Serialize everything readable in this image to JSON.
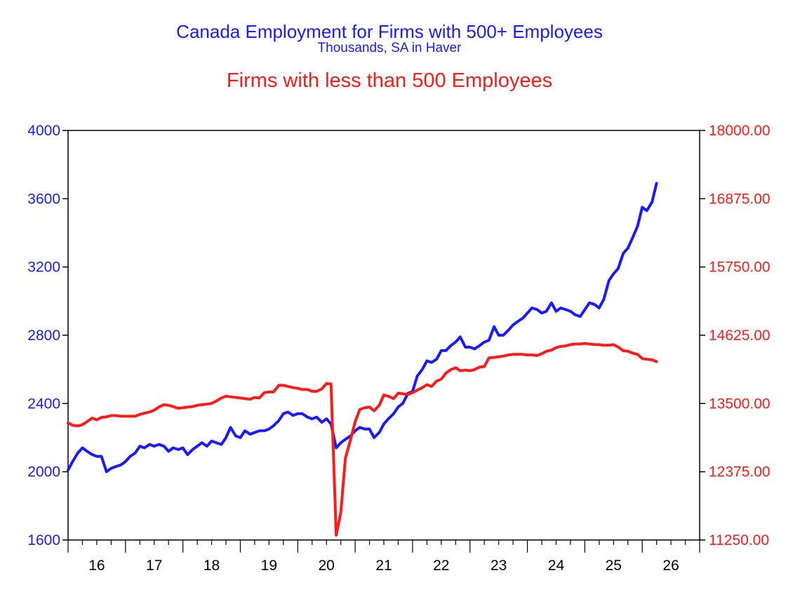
{
  "chart_data": {
    "type": "line",
    "title": "Canada Employment for Firms with 500+ Employees",
    "subtitle": "Thousands, SA in Haver",
    "title2": "Firms with less than 500 Employees",
    "colors": {
      "left": "#1a1aff",
      "right": "#ff1a1a",
      "axis": "#000000"
    },
    "x_domain": [
      2015.5,
      2026.5
    ],
    "x_tick_labels": [
      "16",
      "17",
      "18",
      "19",
      "20",
      "21",
      "22",
      "23",
      "24",
      "25",
      "26"
    ],
    "left_axis": {
      "ylim": [
        1600,
        4000
      ],
      "ticks": [
        "1600",
        "2000",
        "2400",
        "2800",
        "3200",
        "3600",
        "4000"
      ]
    },
    "right_axis": {
      "ylim": [
        11250,
        18000
      ],
      "ticks": [
        "11250.00",
        "12375.00",
        "13500.00",
        "14625.00",
        "15750.00",
        "16875.00",
        "18000.00"
      ]
    },
    "grid": false,
    "series": [
      {
        "axis": "left",
        "color": "#1a1aff",
        "points": [
          [
            2015.5,
            2010
          ],
          [
            2015.58,
            2060
          ],
          [
            2015.67,
            2110
          ],
          [
            2015.75,
            2140
          ],
          [
            2015.83,
            2120
          ],
          [
            2015.92,
            2100
          ],
          [
            2016.0,
            2090
          ],
          [
            2016.08,
            2090
          ],
          [
            2016.17,
            2000
          ],
          [
            2016.25,
            2020
          ],
          [
            2016.33,
            2030
          ],
          [
            2016.42,
            2040
          ],
          [
            2016.5,
            2060
          ],
          [
            2016.58,
            2090
          ],
          [
            2016.67,
            2110
          ],
          [
            2016.75,
            2150
          ],
          [
            2016.83,
            2140
          ],
          [
            2016.92,
            2160
          ],
          [
            2017.0,
            2150
          ],
          [
            2017.08,
            2160
          ],
          [
            2017.17,
            2150
          ],
          [
            2017.25,
            2120
          ],
          [
            2017.33,
            2140
          ],
          [
            2017.42,
            2130
          ],
          [
            2017.5,
            2140
          ],
          [
            2017.58,
            2100
          ],
          [
            2017.67,
            2130
          ],
          [
            2017.75,
            2150
          ],
          [
            2017.83,
            2170
          ],
          [
            2017.92,
            2150
          ],
          [
            2018.0,
            2180
          ],
          [
            2018.08,
            2170
          ],
          [
            2018.17,
            2160
          ],
          [
            2018.25,
            2200
          ],
          [
            2018.33,
            2260
          ],
          [
            2018.42,
            2210
          ],
          [
            2018.5,
            2200
          ],
          [
            2018.58,
            2240
          ],
          [
            2018.67,
            2220
          ],
          [
            2018.75,
            2230
          ],
          [
            2018.83,
            2240
          ],
          [
            2018.92,
            2240
          ],
          [
            2019.0,
            2250
          ],
          [
            2019.08,
            2270
          ],
          [
            2019.17,
            2300
          ],
          [
            2019.25,
            2340
          ],
          [
            2019.33,
            2350
          ],
          [
            2019.42,
            2330
          ],
          [
            2019.5,
            2340
          ],
          [
            2019.58,
            2340
          ],
          [
            2019.67,
            2320
          ],
          [
            2019.75,
            2310
          ],
          [
            2019.83,
            2320
          ],
          [
            2019.92,
            2290
          ],
          [
            2020.0,
            2310
          ],
          [
            2020.08,
            2280
          ],
          [
            2020.17,
            2140
          ],
          [
            2020.25,
            2170
          ],
          [
            2020.33,
            2190
          ],
          [
            2020.42,
            2210
          ],
          [
            2020.5,
            2240
          ],
          [
            2020.58,
            2260
          ],
          [
            2020.67,
            2250
          ],
          [
            2020.75,
            2250
          ],
          [
            2020.83,
            2200
          ],
          [
            2020.92,
            2230
          ],
          [
            2021.0,
            2280
          ],
          [
            2021.08,
            2310
          ],
          [
            2021.17,
            2340
          ],
          [
            2021.25,
            2380
          ],
          [
            2021.33,
            2400
          ],
          [
            2021.42,
            2460
          ],
          [
            2021.5,
            2470
          ],
          [
            2021.58,
            2560
          ],
          [
            2021.67,
            2600
          ],
          [
            2021.75,
            2650
          ],
          [
            2021.83,
            2640
          ],
          [
            2021.92,
            2660
          ],
          [
            2022.0,
            2710
          ],
          [
            2022.08,
            2710
          ],
          [
            2022.17,
            2740
          ],
          [
            2022.25,
            2760
          ],
          [
            2022.33,
            2790
          ],
          [
            2022.42,
            2730
          ],
          [
            2022.5,
            2730
          ],
          [
            2022.58,
            2720
          ],
          [
            2022.67,
            2740
          ],
          [
            2022.75,
            2760
          ],
          [
            2022.83,
            2770
          ],
          [
            2022.92,
            2850
          ],
          [
            2023.0,
            2800
          ],
          [
            2023.08,
            2800
          ],
          [
            2023.17,
            2830
          ],
          [
            2023.25,
            2860
          ],
          [
            2023.33,
            2880
          ],
          [
            2023.42,
            2900
          ],
          [
            2023.5,
            2930
          ],
          [
            2023.58,
            2960
          ],
          [
            2023.67,
            2950
          ],
          [
            2023.75,
            2930
          ],
          [
            2023.83,
            2940
          ],
          [
            2023.92,
            2990
          ],
          [
            2024.0,
            2940
          ],
          [
            2024.08,
            2960
          ],
          [
            2024.17,
            2950
          ],
          [
            2024.25,
            2940
          ],
          [
            2024.33,
            2920
          ],
          [
            2024.42,
            2910
          ],
          [
            2024.5,
            2950
          ],
          [
            2024.58,
            2990
          ],
          [
            2024.67,
            2980
          ],
          [
            2024.75,
            2960
          ],
          [
            2024.83,
            3010
          ],
          [
            2024.92,
            3120
          ],
          [
            2025.0,
            3160
          ],
          [
            2025.08,
            3190
          ],
          [
            2025.17,
            3280
          ],
          [
            2025.25,
            3310
          ],
          [
            2025.33,
            3370
          ],
          [
            2025.42,
            3440
          ],
          [
            2025.5,
            3550
          ],
          [
            2025.58,
            3530
          ],
          [
            2025.67,
            3580
          ],
          [
            2025.75,
            3690
          ]
        ]
      },
      {
        "axis": "right",
        "color": "#ff1a1a",
        "points": [
          [
            2015.5,
            13180
          ],
          [
            2015.58,
            13140
          ],
          [
            2015.67,
            13130
          ],
          [
            2015.75,
            13150
          ],
          [
            2015.83,
            13200
          ],
          [
            2015.92,
            13260
          ],
          [
            2016.0,
            13230
          ],
          [
            2016.08,
            13270
          ],
          [
            2016.17,
            13280
          ],
          [
            2016.25,
            13300
          ],
          [
            2016.33,
            13300
          ],
          [
            2016.42,
            13290
          ],
          [
            2016.5,
            13290
          ],
          [
            2016.58,
            13290
          ],
          [
            2016.67,
            13290
          ],
          [
            2016.75,
            13320
          ],
          [
            2016.83,
            13340
          ],
          [
            2016.92,
            13360
          ],
          [
            2017.0,
            13390
          ],
          [
            2017.08,
            13440
          ],
          [
            2017.17,
            13480
          ],
          [
            2017.25,
            13470
          ],
          [
            2017.33,
            13450
          ],
          [
            2017.42,
            13420
          ],
          [
            2017.5,
            13430
          ],
          [
            2017.58,
            13440
          ],
          [
            2017.67,
            13450
          ],
          [
            2017.75,
            13470
          ],
          [
            2017.83,
            13480
          ],
          [
            2017.92,
            13490
          ],
          [
            2018.0,
            13500
          ],
          [
            2018.08,
            13540
          ],
          [
            2018.17,
            13590
          ],
          [
            2018.25,
            13620
          ],
          [
            2018.33,
            13610
          ],
          [
            2018.42,
            13600
          ],
          [
            2018.5,
            13590
          ],
          [
            2018.58,
            13580
          ],
          [
            2018.67,
            13570
          ],
          [
            2018.75,
            13600
          ],
          [
            2018.83,
            13590
          ],
          [
            2018.92,
            13680
          ],
          [
            2019.0,
            13690
          ],
          [
            2019.08,
            13690
          ],
          [
            2019.17,
            13800
          ],
          [
            2019.25,
            13800
          ],
          [
            2019.33,
            13780
          ],
          [
            2019.42,
            13760
          ],
          [
            2019.5,
            13750
          ],
          [
            2019.58,
            13730
          ],
          [
            2019.67,
            13730
          ],
          [
            2019.75,
            13700
          ],
          [
            2019.83,
            13700
          ],
          [
            2019.92,
            13740
          ],
          [
            2020.0,
            13830
          ],
          [
            2020.08,
            13820
          ],
          [
            2020.17,
            11330
          ],
          [
            2020.25,
            11700
          ],
          [
            2020.33,
            12600
          ],
          [
            2020.42,
            12900
          ],
          [
            2020.5,
            13200
          ],
          [
            2020.58,
            13400
          ],
          [
            2020.67,
            13430
          ],
          [
            2020.75,
            13440
          ],
          [
            2020.83,
            13380
          ],
          [
            2020.92,
            13470
          ],
          [
            2021.0,
            13640
          ],
          [
            2021.08,
            13620
          ],
          [
            2021.17,
            13580
          ],
          [
            2021.25,
            13670
          ],
          [
            2021.33,
            13660
          ],
          [
            2021.42,
            13650
          ],
          [
            2021.5,
            13680
          ],
          [
            2021.58,
            13720
          ],
          [
            2021.67,
            13760
          ],
          [
            2021.75,
            13810
          ],
          [
            2021.83,
            13780
          ],
          [
            2021.92,
            13870
          ],
          [
            2022.0,
            13900
          ],
          [
            2022.08,
            14000
          ],
          [
            2022.17,
            14060
          ],
          [
            2022.25,
            14090
          ],
          [
            2022.33,
            14040
          ],
          [
            2022.42,
            14050
          ],
          [
            2022.5,
            14040
          ],
          [
            2022.58,
            14060
          ],
          [
            2022.67,
            14100
          ],
          [
            2022.75,
            14110
          ],
          [
            2022.83,
            14250
          ],
          [
            2022.92,
            14260
          ],
          [
            2023.0,
            14270
          ],
          [
            2023.08,
            14280
          ],
          [
            2023.17,
            14300
          ],
          [
            2023.25,
            14310
          ],
          [
            2023.33,
            14310
          ],
          [
            2023.42,
            14310
          ],
          [
            2023.5,
            14300
          ],
          [
            2023.58,
            14300
          ],
          [
            2023.67,
            14290
          ],
          [
            2023.75,
            14320
          ],
          [
            2023.83,
            14360
          ],
          [
            2023.92,
            14380
          ],
          [
            2024.0,
            14420
          ],
          [
            2024.08,
            14440
          ],
          [
            2024.17,
            14450
          ],
          [
            2024.25,
            14470
          ],
          [
            2024.33,
            14480
          ],
          [
            2024.42,
            14480
          ],
          [
            2024.5,
            14490
          ],
          [
            2024.58,
            14480
          ],
          [
            2024.67,
            14470
          ],
          [
            2024.75,
            14470
          ],
          [
            2024.83,
            14460
          ],
          [
            2024.92,
            14460
          ],
          [
            2025.0,
            14470
          ],
          [
            2025.08,
            14430
          ],
          [
            2025.17,
            14370
          ],
          [
            2025.25,
            14360
          ],
          [
            2025.33,
            14330
          ],
          [
            2025.42,
            14310
          ],
          [
            2025.5,
            14240
          ],
          [
            2025.58,
            14230
          ],
          [
            2025.67,
            14220
          ],
          [
            2025.75,
            14190
          ]
        ]
      }
    ]
  }
}
